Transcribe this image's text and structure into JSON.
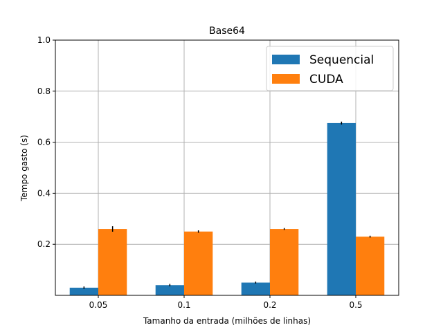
{
  "chart_data": {
    "type": "bar",
    "title": "Base64",
    "xlabel": "Tamanho da entrada (milhões de linhas)",
    "ylabel": "Tempo gasto (s)",
    "categories": [
      "0.05",
      "0.1",
      "0.2",
      "0.5"
    ],
    "series": [
      {
        "name": "Sequencial",
        "color": "#1f77b4",
        "values": [
          0.03,
          0.04,
          0.05,
          0.675
        ],
        "errors": [
          0.002,
          0.002,
          0.001,
          0.003
        ]
      },
      {
        "name": "CUDA",
        "color": "#ff7f0e",
        "values": [
          0.26,
          0.25,
          0.26,
          0.23
        ],
        "errors": [
          0.008,
          0.002,
          0.001,
          0.001
        ]
      }
    ],
    "ylim": [
      0.0,
      1.0
    ],
    "yticks": [
      "0.2",
      "0.4",
      "0.6",
      "0.8",
      "1.0"
    ],
    "grid": true,
    "legend_position": "top-right"
  }
}
